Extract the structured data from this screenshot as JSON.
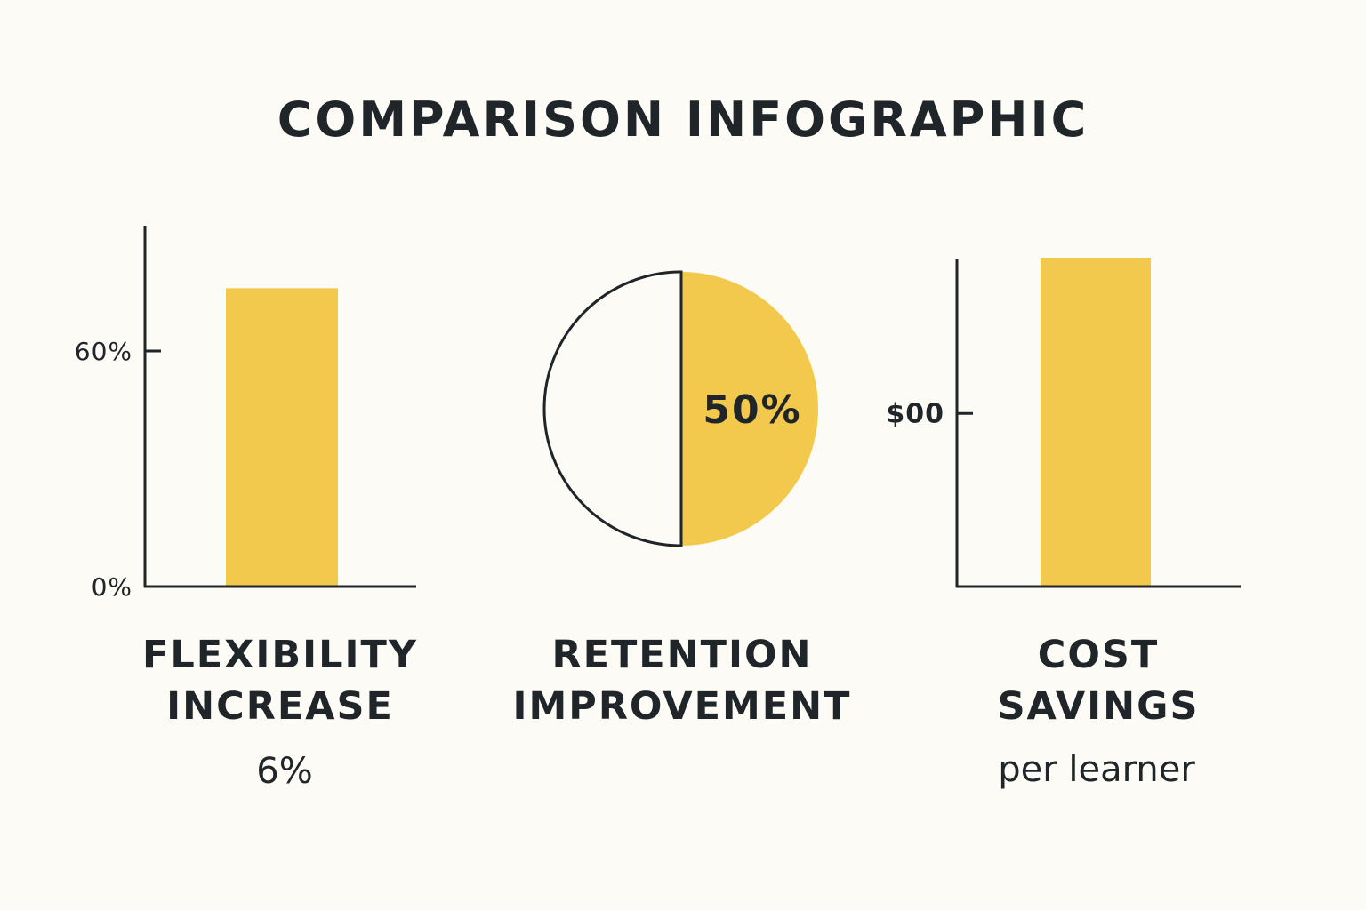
{
  "title": "COMPARISON INFOGRAPHIC",
  "colors": {
    "accent": "#f2c94c",
    "ink": "#1f2528",
    "background": "#fdfbf6"
  },
  "chart_data": [
    {
      "type": "bar",
      "title": "",
      "caption_lines": [
        "FLEXIBILITY",
        "INCREASE"
      ],
      "subcaption": "6%",
      "categories": [
        ""
      ],
      "values": [
        76
      ],
      "ylim": [
        0,
        84
      ],
      "ticks": [
        {
          "value": 0,
          "label": "0%"
        },
        {
          "value": 60,
          "label": "60%"
        }
      ],
      "grid": false
    },
    {
      "type": "pie",
      "title": "",
      "caption_lines": [
        "RETENTION",
        "IMPROVEMENT"
      ],
      "slices": [
        {
          "label": "50%",
          "value": 50,
          "filled": true
        },
        {
          "label": "",
          "value": 50,
          "filled": false
        }
      ]
    },
    {
      "type": "bar",
      "title": "",
      "caption_lines": [
        "COST",
        "SAVINGS"
      ],
      "subcaption": "per learner",
      "categories": [
        ""
      ],
      "values": [
        1.9
      ],
      "ylim": [
        0,
        1.9
      ],
      "ticks": [
        {
          "value": 1,
          "label": "$00",
          "show_line": false
        }
      ],
      "grid": false
    }
  ]
}
